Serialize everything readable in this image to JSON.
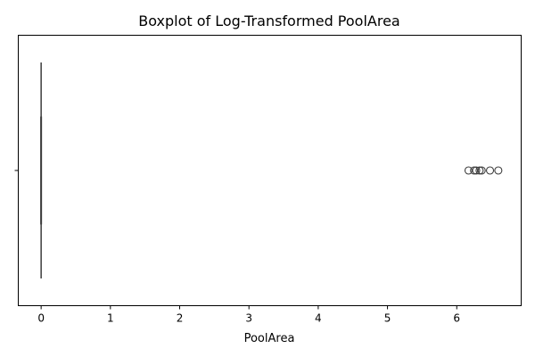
{
  "chart_data": {
    "type": "boxplot",
    "orientation": "horizontal",
    "title": "Boxplot of Log-Transformed PoolArea",
    "xlabel": "PoolArea",
    "ylabel": "",
    "xlim": [
      -0.33,
      6.93
    ],
    "xticks": [
      0,
      1,
      2,
      3,
      4,
      5,
      6
    ],
    "xtick_labels": [
      "0",
      "1",
      "2",
      "3",
      "4",
      "5",
      "6"
    ],
    "grid": false,
    "box": {
      "min": 0,
      "q1": 0,
      "median": 0,
      "q3": 0,
      "max": 0
    },
    "outliers": [
      6.17,
      6.25,
      6.28,
      6.33,
      6.36,
      6.48,
      6.6
    ],
    "colors": {
      "line": "#3d3d3d",
      "box_fill": "#3274a1"
    }
  }
}
